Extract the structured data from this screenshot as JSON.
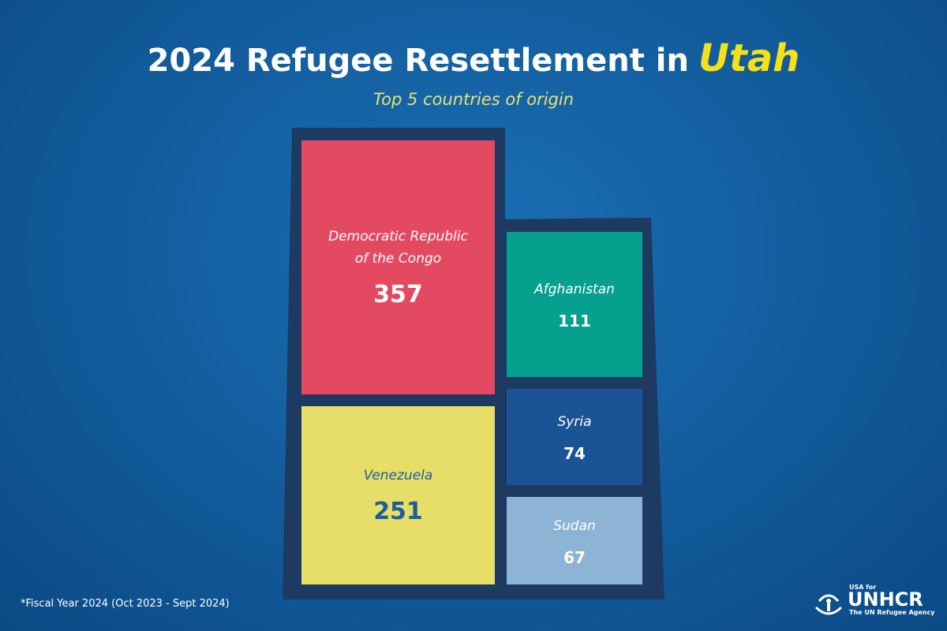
{
  "chart_data": {
    "type": "treemap",
    "title": "2024 Refugee Resettlement in",
    "title_highlight": "Utah",
    "subtitle": "Top 5 countries of origin",
    "categories": [
      "Democratic Republic of the Congo",
      "Venezuela",
      "Afghanistan",
      "Syria",
      "Sudan"
    ],
    "values": [
      357,
      251,
      111,
      74,
      67
    ],
    "colors": [
      "#e34a62",
      "#e6de66",
      "#05a08e",
      "#1b5496",
      "#8db4d4"
    ],
    "label_colors": [
      "#ffffff",
      "#1a5fa0",
      "#ffffff",
      "#ffffff",
      "#ffffff"
    ],
    "footnote": "*Fiscal Year 2024 (Oct 2023 - Sept 2024)"
  },
  "logo": {
    "top": "USA for",
    "name": "UNHCR",
    "tagline": "The UN Refugee Agency"
  }
}
